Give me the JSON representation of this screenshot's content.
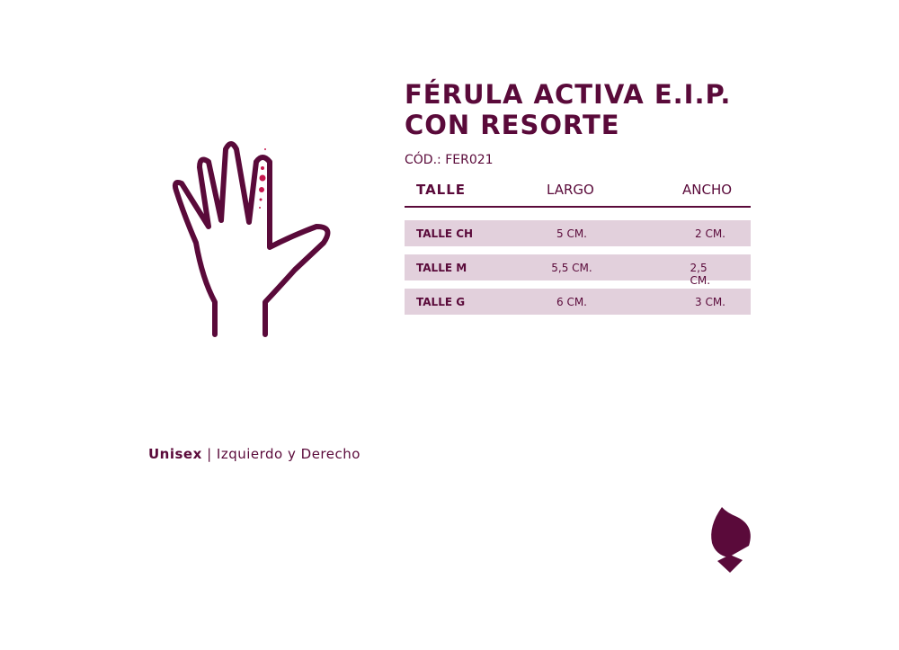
{
  "header": {
    "title_lines": [
      "FÉRULA ACTIVA E.I.P.",
      "CON RESORTE"
    ],
    "code": "CÓD.: FER021"
  },
  "table": {
    "columns": [
      "TALLE",
      "LARGO",
      "ANCHO"
    ],
    "rows": [
      [
        "TALLE CH",
        "5 CM.",
        "2 CM."
      ],
      [
        "TALLE M",
        "5,5 CM.",
        "2,5 CM."
      ],
      [
        "TALLE G",
        "6 CM.",
        "3 CM."
      ]
    ]
  },
  "footer": {
    "bold": "Unisex",
    "separator": "|",
    "text": "Izquierdo y Derecho"
  }
}
